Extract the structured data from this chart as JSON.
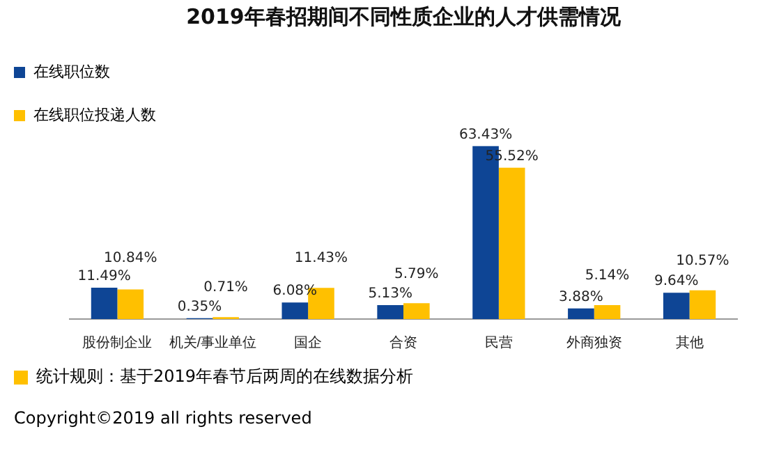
{
  "chart_data": {
    "type": "bar",
    "title": "2019年春招期间不同性质企业的人才供需情况",
    "categories": [
      "股份制企业",
      "机关/事业单位",
      "国企",
      "合资",
      "民营",
      "外商独资",
      "其他"
    ],
    "series": [
      {
        "name": "在线职位数",
        "color": "#0e4595",
        "values": [
          11.49,
          0.35,
          6.08,
          5.13,
          63.43,
          3.88,
          9.64
        ],
        "value_labels": [
          "11.49%",
          "0.35%",
          "6.08%",
          "5.13%",
          "63.43%",
          "3.88%",
          "9.64%"
        ]
      },
      {
        "name": "在线职位投递人数",
        "color": "#ffc000",
        "values": [
          10.84,
          0.71,
          11.43,
          5.79,
          55.52,
          5.14,
          10.57
        ],
        "value_labels": [
          "10.84%",
          "0.71%",
          "11.43%",
          "5.79%",
          "55.52%",
          "5.14%",
          "10.57%"
        ]
      }
    ],
    "grid": false,
    "legend": "top left",
    "annotations": [
      "统计规则：基于2019年春节后两周的在线数据分析",
      "Copyright©2019 all rights reserved"
    ]
  }
}
